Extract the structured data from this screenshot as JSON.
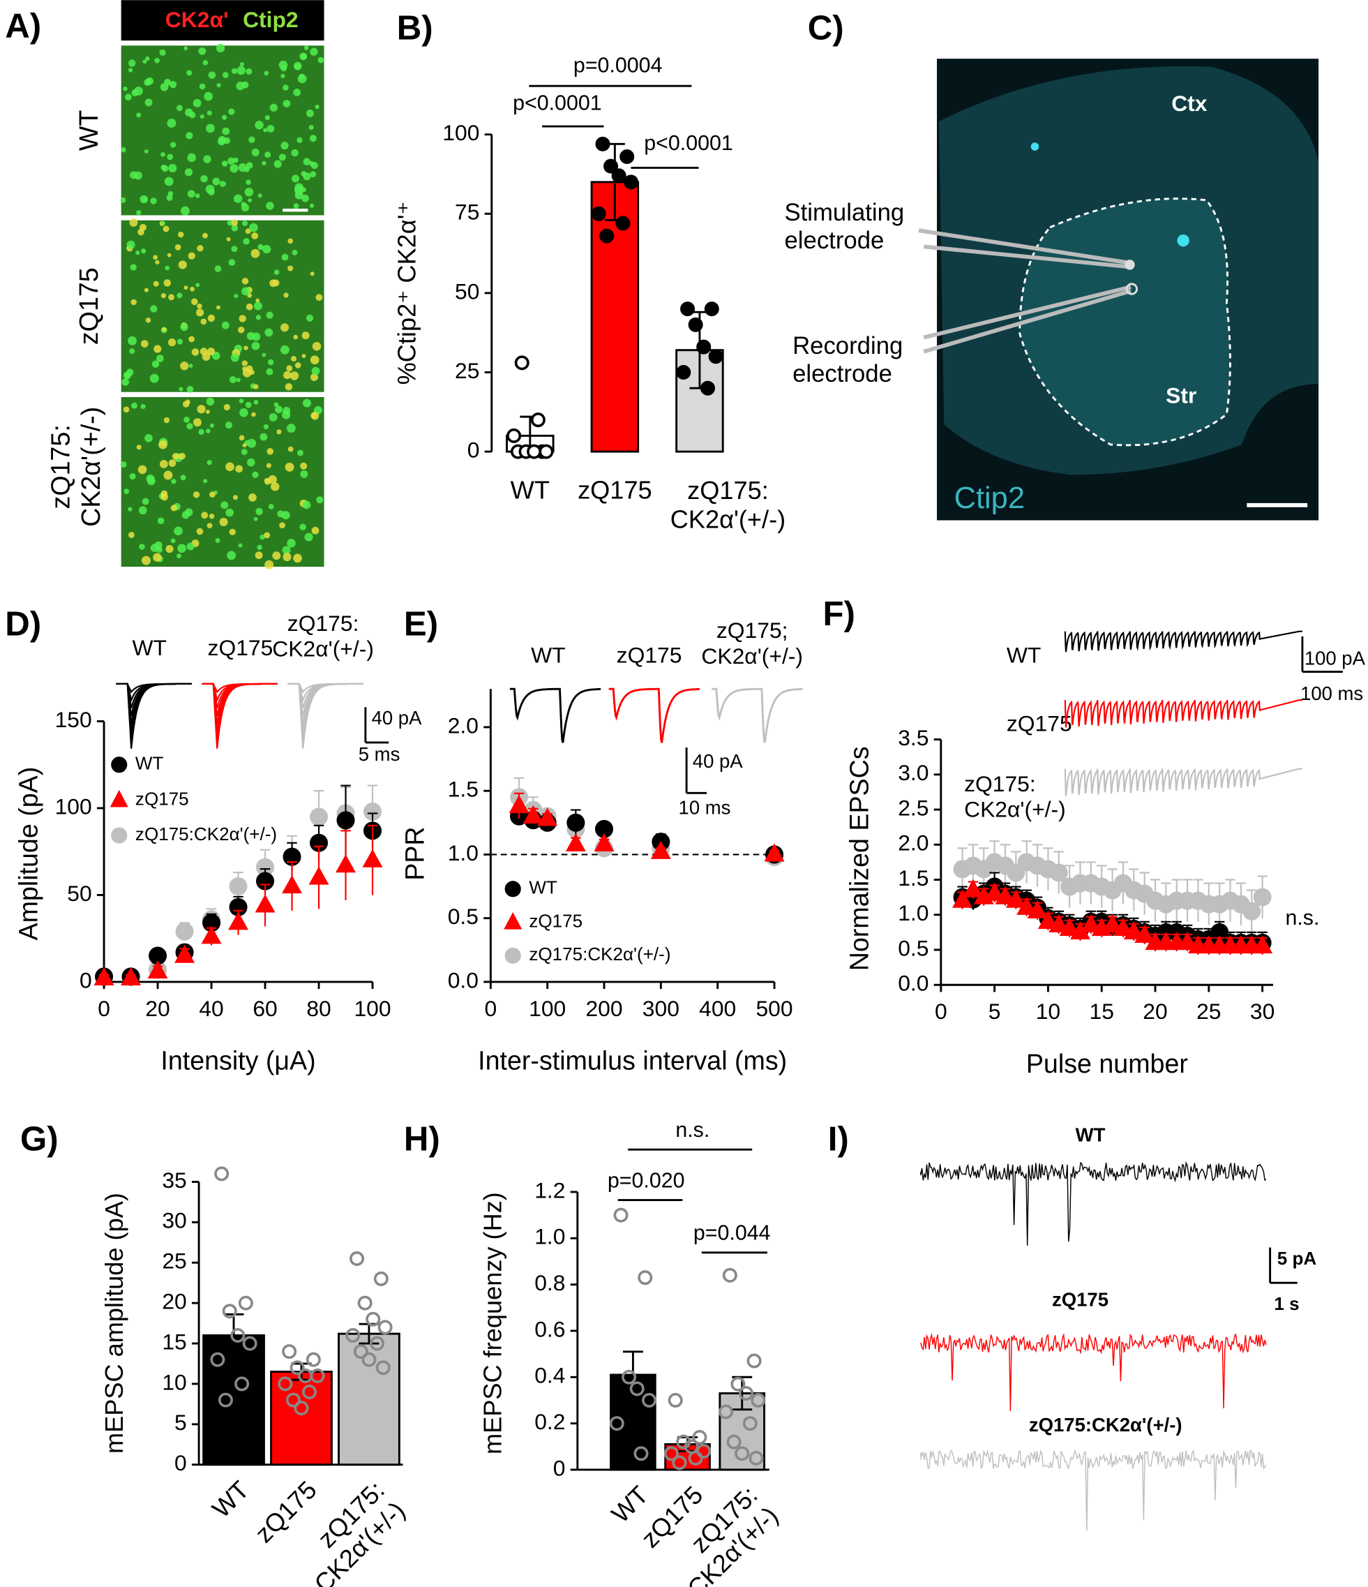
{
  "micrograph": {
    "panel": "A)",
    "channels": [
      "CK2α'",
      "Ctip2"
    ],
    "rows": [
      "WT",
      "zQ175",
      "zQ175:\nCK2α'(+/-)"
    ]
  },
  "brain_section": {
    "panel": "C)",
    "regions": [
      "Ctx",
      "Str"
    ],
    "electrodes": [
      "Stimulating\nelectrode",
      "Recording\nelectrode"
    ],
    "stain": "Ctip2"
  },
  "mepsc_traces": {
    "panel": "I)",
    "labels": [
      "WT",
      "zQ175",
      "zQ175:CK2α'(+/-)"
    ],
    "colors": [
      "#000000",
      "#ff0000",
      "#bfbfbf"
    ],
    "scale_labels": [
      "5 pA",
      "1 s"
    ]
  },
  "chart_data": [
    {
      "type": "bar",
      "panel": "B)",
      "ylabel": "%Ctip2⁺ CK2α'⁺",
      "categories": [
        "WT",
        "zQ175",
        "zQ175:\nCK2α'(+/-)"
      ],
      "values": [
        5,
        85,
        32
      ],
      "errors": [
        6,
        12,
        12
      ],
      "colors": [
        "#ffffff",
        "#ff0000",
        "#d9d9d9"
      ],
      "points": [
        [
          0,
          0,
          0,
          0,
          0,
          5,
          10,
          28
        ],
        [
          97,
          93,
          90,
          87,
          85,
          75,
          72,
          68
        ],
        [
          45,
          45,
          40,
          33,
          30,
          25,
          20
        ]
      ],
      "point_fill": [
        "#ffffff",
        "#000000",
        "#000000"
      ],
      "point_stroke": "#000000",
      "ylim": [
        0,
        100
      ],
      "yticks": [
        0,
        25,
        50,
        75,
        100
      ],
      "annotations": [
        "p<0.0001",
        "p=0.0004",
        "p<0.0001"
      ]
    },
    {
      "type": "scatter",
      "panel": "D)",
      "xlabel": "Intensity (μA)",
      "ylabel": "Amplitude (pA)",
      "x": [
        0,
        10,
        20,
        30,
        40,
        50,
        60,
        70,
        80,
        90,
        100
      ],
      "series": [
        {
          "name": "WT",
          "color": "#000000",
          "marker": "circle",
          "values": [
            3,
            3,
            15,
            17,
            34,
            43,
            58,
            72,
            80,
            93,
            87
          ],
          "errors": [
            2,
            2,
            4,
            4,
            5,
            6,
            7,
            8,
            10,
            20,
            10
          ]
        },
        {
          "name": "zQ175",
          "color": "#ff0000",
          "marker": "triangle",
          "values": [
            2,
            2,
            6,
            15,
            26,
            34,
            44,
            55,
            60,
            67,
            70
          ],
          "errors": [
            2,
            2,
            3,
            4,
            5,
            7,
            12,
            14,
            18,
            20,
            20
          ]
        },
        {
          "name": "zQ175:CK2α'(+/-)",
          "color": "#bfbfbf",
          "marker": "circle",
          "values": [
            3,
            3,
            7,
            29,
            36,
            55,
            66,
            72,
            95,
            97,
            98
          ],
          "errors": [
            2,
            2,
            3,
            5,
            6,
            8,
            10,
            12,
            15,
            15,
            15
          ]
        }
      ],
      "xlim": [
        0,
        100
      ],
      "xticks": [
        0,
        20,
        40,
        60,
        80,
        100
      ],
      "ylim": [
        0,
        150
      ],
      "yticks": [
        0,
        50,
        100,
        150
      ],
      "legend": true,
      "trace_labels": [
        "WT",
        "zQ175",
        "zQ175:\nCK2α'(+/-)"
      ],
      "scale_labels": [
        "40 pA",
        "5 ms"
      ]
    },
    {
      "type": "scatter",
      "panel": "E)",
      "xlabel": "Inter-stimulus interval (ms)",
      "ylabel": "PPR",
      "x": [
        50,
        75,
        100,
        150,
        200,
        300,
        500
      ],
      "series": [
        {
          "name": "WT",
          "color": "#000000",
          "marker": "circle",
          "values": [
            1.3,
            1.27,
            1.25,
            1.25,
            1.2,
            1.1,
            1.0
          ],
          "errors": [
            0.06,
            0.06,
            0.04,
            0.1,
            0.05,
            0.06,
            0.04
          ]
        },
        {
          "name": "zQ175",
          "color": "#ff0000",
          "marker": "triangle",
          "values": [
            1.38,
            1.3,
            1.28,
            1.08,
            1.08,
            1.02,
            1.0
          ],
          "errors": [
            0.1,
            0.06,
            0.04,
            0.05,
            0.04,
            0.03,
            0.03
          ]
        },
        {
          "name": "zQ175:CK2α'(+/-)",
          "color": "#bfbfbf",
          "marker": "circle",
          "values": [
            1.45,
            1.35,
            1.3,
            1.2,
            1.05,
            1.05,
            0.98
          ],
          "errors": [
            0.15,
            0.1,
            0.05,
            0.08,
            0.06,
            0.05,
            0.04
          ]
        }
      ],
      "xlim": [
        0,
        500
      ],
      "xticks": [
        0,
        100,
        200,
        300,
        400,
        500
      ],
      "ylim": [
        0,
        2.3
      ],
      "yticks": [
        {
          "value": 0,
          "label": "0.0"
        },
        0.5,
        {
          "value": 1,
          "label": "1.0"
        },
        1.5,
        {
          "value": 2,
          "label": "2.0"
        }
      ],
      "reference_line": 1,
      "legend": true,
      "trace_labels": [
        "WT",
        "zQ175",
        "zQ175;\nCK2α'(+/-)"
      ],
      "scale_labels": [
        "40 pA",
        "10 ms"
      ]
    },
    {
      "type": "scatter",
      "panel": "F)",
      "xlabel": "Pulse number",
      "ylabel": "Normalized EPSCs",
      "x": [
        2,
        3,
        4,
        5,
        6,
        7,
        8,
        9,
        10,
        11,
        12,
        13,
        14,
        15,
        16,
        17,
        18,
        19,
        20,
        21,
        22,
        23,
        24,
        25,
        26,
        27,
        28,
        29,
        30
      ],
      "series": [
        {
          "name": "WT",
          "color": "#000000",
          "marker": "circle",
          "values": [
            1.25,
            1.22,
            1.3,
            1.4,
            1.3,
            1.25,
            1.2,
            1.1,
            0.95,
            0.9,
            0.85,
            0.8,
            0.9,
            0.9,
            0.85,
            0.85,
            0.8,
            0.75,
            0.7,
            0.75,
            0.75,
            0.7,
            0.65,
            0.65,
            0.75,
            0.6,
            0.6,
            0.6,
            0.6
          ],
          "errors": [
            0.15,
            0.15,
            0.15,
            0.2,
            0.15,
            0.15,
            0.15,
            0.15,
            0.15,
            0.15,
            0.15,
            0.15,
            0.15,
            0.15,
            0.15,
            0.15,
            0.15,
            0.15,
            0.15,
            0.15,
            0.15,
            0.15,
            0.15,
            0.15,
            0.15,
            0.15,
            0.15,
            0.15,
            0.15
          ]
        },
        {
          "name": "zQ175",
          "color": "#ff0000",
          "marker": "triangle",
          "values": [
            1.2,
            1.35,
            1.25,
            1.3,
            1.25,
            1.2,
            1.1,
            1.05,
            0.9,
            0.85,
            0.8,
            0.75,
            0.85,
            0.8,
            0.85,
            0.8,
            0.75,
            0.7,
            0.6,
            0.6,
            0.6,
            0.6,
            0.55,
            0.55,
            0.55,
            0.55,
            0.55,
            0.55,
            0.55
          ],
          "errors": [
            0.12,
            0.12,
            0.12,
            0.12,
            0.12,
            0.12,
            0.12,
            0.12,
            0.12,
            0.12,
            0.12,
            0.12,
            0.12,
            0.12,
            0.12,
            0.12,
            0.12,
            0.12,
            0.12,
            0.12,
            0.12,
            0.12,
            0.12,
            0.12,
            0.12,
            0.12,
            0.12,
            0.12,
            0.12
          ]
        },
        {
          "name": "zQ175:CK2α'(+/-)",
          "color": "#bfbfbf",
          "marker": "circle",
          "values": [
            1.65,
            1.7,
            1.65,
            1.75,
            1.7,
            1.6,
            1.75,
            1.7,
            1.65,
            1.6,
            1.4,
            1.45,
            1.45,
            1.4,
            1.35,
            1.45,
            1.35,
            1.3,
            1.2,
            1.15,
            1.2,
            1.2,
            1.2,
            1.15,
            1.15,
            1.2,
            1.15,
            1.05,
            1.25
          ],
          "errors": [
            0.3,
            0.3,
            0.3,
            0.3,
            0.3,
            0.3,
            0.3,
            0.3,
            0.3,
            0.3,
            0.3,
            0.3,
            0.3,
            0.3,
            0.3,
            0.3,
            0.3,
            0.3,
            0.3,
            0.3,
            0.3,
            0.3,
            0.3,
            0.3,
            0.3,
            0.3,
            0.3,
            0.3,
            0.3
          ]
        }
      ],
      "xlim": [
        0,
        31
      ],
      "xticks": [
        0,
        5,
        10,
        15,
        20,
        25,
        30
      ],
      "ylim": [
        0,
        3.5
      ],
      "yticks": [
        {
          "value": 0,
          "label": "0.0"
        },
        0.5,
        {
          "value": 1,
          "label": "1.0"
        },
        1.5,
        {
          "value": 2,
          "label": "2.0"
        },
        2.5,
        {
          "value": 3,
          "label": "3.0"
        },
        3.5
      ],
      "legend": false,
      "annotations": [
        "n.s."
      ],
      "trace_labels": [
        "WT",
        "zQ175",
        "zQ175:\nCK2α'(+/-)"
      ],
      "scale_labels": [
        "100 pA",
        "100 ms"
      ]
    },
    {
      "type": "bar",
      "panel": "G)",
      "ylabel": "mEPSC amplitude (pA)",
      "categories": [
        "WT",
        "zQ175",
        "zQ175:\nCK2α'(+/-)"
      ],
      "values": [
        16,
        11.5,
        16.2
      ],
      "errors": [
        2.6,
        1,
        1.2
      ],
      "colors": [
        "#000000",
        "#ff0000",
        "#bfbfbf"
      ],
      "points": [
        [
          36,
          20,
          19,
          16,
          15,
          13,
          10,
          8
        ],
        [
          14,
          13,
          12,
          11,
          11,
          10,
          9,
          8,
          7
        ],
        [
          25.5,
          23,
          20,
          18,
          17,
          16,
          15,
          14,
          13,
          12
        ]
      ],
      "point_fill": [
        "none",
        "none",
        "none"
      ],
      "point_stroke": "#888888",
      "ylim": [
        0,
        35
      ],
      "yticks": [
        0,
        5,
        10,
        15,
        20,
        25,
        30,
        35
      ]
    },
    {
      "type": "bar",
      "panel": "H)",
      "ylabel": "mEPSC frequenzy (Hz)",
      "categories": [
        "WT",
        "zQ175",
        "zQ175:\nCK2α'(+/-)"
      ],
      "values": [
        0.41,
        0.11,
        0.33
      ],
      "errors": [
        0.1,
        0.03,
        0.07
      ],
      "colors": [
        "#000000",
        "#ff0000",
        "#bfbfbf"
      ],
      "points": [
        [
          1.1,
          0.83,
          0.4,
          0.35,
          0.3,
          0.2,
          0.07
        ],
        [
          0.3,
          0.14,
          0.12,
          0.1,
          0.08,
          0.07,
          0.05,
          0.03
        ],
        [
          0.84,
          0.47,
          0.37,
          0.33,
          0.3,
          0.25,
          0.2,
          0.12,
          0.07,
          0.05
        ]
      ],
      "point_fill": [
        "none",
        "none",
        "none"
      ],
      "point_stroke": "#888888",
      "ylim": [
        0,
        1.2
      ],
      "yticks": [
        0,
        0.2,
        0.4,
        0.6,
        0.8,
        {
          "value": 1,
          "label": "1.0"
        },
        1.2
      ],
      "annotations": [
        "n.s.",
        "p=0.020",
        "p=0.044"
      ]
    }
  ]
}
